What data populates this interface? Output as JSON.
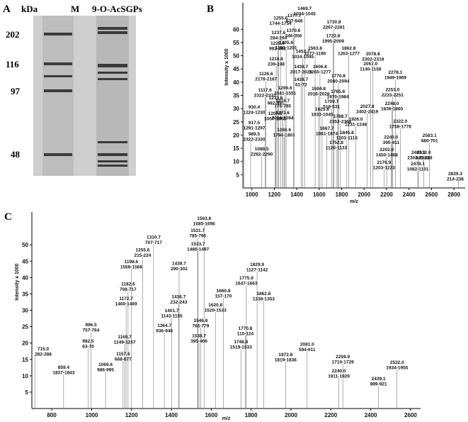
{
  "gel": {
    "panel_label": "A",
    "unit": "kDa",
    "lane_labels": [
      "M",
      "9-O-AcSGPs"
    ],
    "markers": [
      "202",
      "116",
      "97",
      "48"
    ]
  },
  "chart_data": [
    {
      "type": "stick",
      "panel_label": "B",
      "xlabel": "m/z",
      "ylabel": "Intensity x 1000",
      "xlim": [
        920,
        2900
      ],
      "ylim": [
        0,
        70
      ],
      "xticks": [
        1000,
        1200,
        1400,
        1600,
        1800,
        2000,
        2200,
        2400,
        2600,
        2800
      ],
      "yticks": [
        5,
        10,
        15,
        20,
        25,
        30,
        35,
        40,
        45,
        50,
        55,
        60
      ],
      "annotations": [
        {
          "peak": {
            "value": 1255.6,
            "label": "1255.6"
          },
          "range": "1744-1754",
          "intensity": 65
        },
        {
          "peak": {
            "value": 1237.6,
            "label": "1237.6"
          },
          "range": "284-294",
          "intensity": 59.5
        },
        {
          "peak": {
            "value": 1229.6,
            "label": "1229.6"
          },
          "range": "982-991",
          "intensity": 55.5
        },
        {
          "peak": {
            "value": 1216.6,
            "label": "1216.6"
          },
          "range": "239-248",
          "intensity": 49.6
        },
        {
          "peak": {
            "value": 1126.6,
            "label": "1126.6"
          },
          "range": "2178-2187",
          "intensity": 44
        },
        {
          "peak": {
            "value": 1117.6,
            "label": "1117.6"
          },
          "range": "2322-2331",
          "intensity": 37.8
        },
        {
          "peak": {
            "value": 930.4,
            "label": "930.4"
          },
          "range": "1224-1230",
          "intensity": 31.4
        },
        {
          "peak": {
            "value": 917.5,
            "label": "917.5"
          },
          "range": "1291-1297",
          "intensity": 25.5
        },
        {
          "peak": {
            "value": 989.5,
            "label": "989.5"
          },
          "range": "2322-2330",
          "intensity": 21.2
        },
        {
          "peak": {
            "value": 1088.5,
            "label": "1088.5"
          },
          "range": "2282-2290",
          "intensity": 15.5
        },
        {
          "peak": {
            "value": 1213.6,
            "label": "1213.6"
          },
          "range": "982-991",
          "intensity": 34.9
        },
        {
          "peak": {
            "value": 1207.6,
            "label": "1207.6"
          },
          "range": "1057-1065",
          "intensity": 29
        },
        {
          "peak": {
            "value": 1296.6,
            "label": "1296.6"
          },
          "range": "1541-1551",
          "intensity": 38.6
        },
        {
          "peak": {
            "value": 1274.7,
            "label": "1274.7"
          },
          "range": "775-785",
          "intensity": 33.8
        },
        {
          "peak": {
            "value": 1273.6,
            "label": "1273.6"
          },
          "range": "2084-2094",
          "intensity": 29.2
        },
        {
          "peak": {
            "value": 1286.6,
            "label": "1286.6"
          },
          "range": "1794-1803",
          "intensity": 22.8
        },
        {
          "peak": {
            "value": 1377.7,
            "label": "1377.7"
          },
          "range": "837-848",
          "intensity": 66
        },
        {
          "peak": {
            "value": 1469.7,
            "label": "1469.7"
          },
          "range": "1034-1045",
          "intensity": 68.6
        },
        {
          "peak": {
            "value": 1370.6,
            "label": "1370.6"
          },
          "range": "346-356",
          "intensity": 60.3
        },
        {
          "peak": {
            "value": 1305.6,
            "label": "1305.6"
          },
          "range": "1191-1201",
          "intensity": 55.8
        },
        {
          "peak": {
            "value": 1453.7,
            "label": "1453.7"
          },
          "range": "1034-1045",
          "intensity": 52.5
        },
        {
          "peak": {
            "value": 1438.7,
            "label": "1438.7"
          },
          "range": "2017-2028",
          "intensity": 46.6
        },
        {
          "peak": {
            "value": 1438.7,
            "label": "1438.7"
          },
          "range": "61-72",
          "intensity": 41.8
        },
        {
          "peak": {
            "value": 1563.8,
            "label": "1563.8"
          },
          "range": "1177-1190",
          "intensity": 53.6
        },
        {
          "peak": {
            "value": 1730.8,
            "label": "1730.8"
          },
          "range": "2267-2281",
          "intensity": 63.5
        },
        {
          "peak": {
            "value": 1723.8,
            "label": "1723.8"
          },
          "range": "1995-2009",
          "intensity": 58.4
        },
        {
          "peak": {
            "value": 1862.8,
            "label": "1862.8"
          },
          "range": "1263-1277",
          "intensity": 53.6
        },
        {
          "peak": {
            "value": 1606.8,
            "label": "1606.8"
          },
          "range": "1265-1277",
          "intensity": 46.6
        },
        {
          "peak": {
            "value": 1770.8,
            "label": "1770.8"
          },
          "range": "2080-2094",
          "intensity": 43.2
        },
        {
          "peak": {
            "value": 2057,
            "label": "2057.0"
          },
          "range": "1140-1158",
          "intensity": 47.7
        },
        {
          "peak": {
            "value": 2078.8,
            "label": "2078.8"
          },
          "range": "2302-2318",
          "intensity": 51.5
        },
        {
          "peak": {
            "value": 2278.1,
            "label": "2278.1"
          },
          "range": "1949-1969",
          "intensity": 44.5
        },
        {
          "peak": {
            "value": 1594.8,
            "label": "1594.8"
          },
          "range": "2016-2028",
          "intensity": 38.3
        },
        {
          "peak": {
            "value": 1765.8,
            "label": "1765.8"
          },
          "range": "1970-1984",
          "intensity": 37.3
        },
        {
          "peak": {
            "value": 1709.7,
            "label": "1709.7"
          },
          "range": "518-531",
          "intensity": 33.5
        },
        {
          "peak": {
            "value": 1625.8,
            "label": "1625.8"
          },
          "range": "1033-1045",
          "intensity": 30.6
        },
        {
          "peak": {
            "value": 1788.7,
            "label": "1788.7"
          },
          "range": "2353-2368",
          "intensity": 27.9
        },
        {
          "peak": {
            "value": 1667.7,
            "label": "1667.7"
          },
          "range": "1861-1874",
          "intensity": 23.3
        },
        {
          "peak": {
            "value": 1752.8,
            "label": "1752.8"
          },
          "range": "1120-1133",
          "intensity": 18
        },
        {
          "peak": {
            "value": 1845.8,
            "label": "1845.8"
          },
          "range": "1103-1118",
          "intensity": 21.7
        },
        {
          "peak": {
            "value": 2027.8,
            "label": "2027.8"
          },
          "range": "2402-2419",
          "intensity": 31.6
        },
        {
          "peak": {
            "value": 1926,
            "label": "1926.0"
          },
          "range": "1231-1248",
          "intensity": 26.8
        },
        {
          "peak": {
            "value": 2253,
            "label": "2253.0"
          },
          "range": "2233-2251",
          "intensity": 38
        },
        {
          "peak": {
            "value": 2248,
            "label": "2248.0"
          },
          "range": "1839-1860",
          "intensity": 32.7
        },
        {
          "peak": {
            "value": 2322,
            "label": "2322.0"
          },
          "range": "1758-1778",
          "intensity": 26
        },
        {
          "peak": {
            "value": 2240,
            "label": "2240.0"
          },
          "range": "390-411",
          "intensity": 20
        },
        {
          "peak": {
            "value": 2583.1,
            "label": "2583.1"
          },
          "range": "680-701",
          "intensity": 20.6
        },
        {
          "peak": {
            "value": 2202,
            "label": "2202.0"
          },
          "range": "1450-1468",
          "intensity": 15.3
        },
        {
          "peak": {
            "value": 2483.1,
            "label": "2483.1"
          },
          "range": "2302-2321",
          "intensity": 14.2
        },
        {
          "peak": {
            "value": 2532,
            "label": "2532.0"
          },
          "range": "426-448",
          "intensity": 14.2
        },
        {
          "peak": {
            "value": 2176.9,
            "label": "2176.9"
          },
          "range": "1203-1223",
          "intensity": 10.5
        },
        {
          "peak": {
            "value": 2478.1,
            "label": "2478.1"
          },
          "range": "1082-1101",
          "intensity": 9.9
        },
        {
          "peak": {
            "value": 2839.3,
            "label": "2839.3"
          },
          "range": "214-238",
          "intensity": 6.2
        }
      ]
    },
    {
      "type": "stick",
      "panel_label": "C",
      "xlabel": "m/z",
      "ylabel": "Intensity x 1000",
      "xlim": [
        700,
        2650
      ],
      "ylim": [
        0,
        60
      ],
      "xticks": [
        800,
        1000,
        1200,
        1400,
        1600,
        1800,
        2000,
        2200,
        2400,
        2600
      ],
      "yticks": [
        5,
        10,
        15,
        20,
        25,
        30,
        35,
        40,
        45,
        50
      ],
      "annotations": [
        {
          "peak": {
            "value": 1563.8,
            "label": "1563.8"
          },
          "range": "1685-1696",
          "intensity": 58.7
        },
        {
          "peak": {
            "value": 1531.7,
            "label": "1531.7"
          },
          "range": "785-796",
          "intensity": 55
        },
        {
          "peak": {
            "value": 1533.7,
            "label": "1533.7"
          },
          "range": "1486-1497",
          "intensity": 50.9
        },
        {
          "peak": {
            "value": 1310.7,
            "label": "1310.7"
          },
          "range": "707-717",
          "intensity": 53
        },
        {
          "peak": {
            "value": 1255.6,
            "label": "1255.6"
          },
          "range": "215-224",
          "intensity": 49.1
        },
        {
          "peak": {
            "value": 1198.6,
            "label": "1198.6"
          },
          "range": "1559-1568",
          "intensity": 45.5
        },
        {
          "peak": {
            "value": 1829.9,
            "label": "1829.9"
          },
          "range": "1127-1142",
          "intensity": 44.6
        },
        {
          "peak": {
            "value": 1775.9,
            "label": "1775.9"
          },
          "range": "1647-1663",
          "intensity": 40.5
        },
        {
          "peak": {
            "value": 1862.8,
            "label": "1862.8"
          },
          "range": "1338-1353",
          "intensity": 35.7
        },
        {
          "peak": {
            "value": 1660.8,
            "label": "1660.8"
          },
          "range": "157-170",
          "intensity": 36.6
        },
        {
          "peak": {
            "value": 1620.8,
            "label": "1620.8"
          },
          "range": "1520-1533",
          "intensity": 32.3
        },
        {
          "peak": {
            "value": 1546.8,
            "label": "1546.8"
          },
          "range": "765-779",
          "intensity": 27.5
        },
        {
          "peak": {
            "value": 1538.7,
            "label": "1538.7"
          },
          "range": "395-406",
          "intensity": 22.9
        },
        {
          "peak": {
            "value": 1770.8,
            "label": "1770.8"
          },
          "range": "110-124",
          "intensity": 25.1
        },
        {
          "peak": {
            "value": 1748.8,
            "label": "1748.8"
          },
          "range": "1519-1533",
          "intensity": 21
        },
        {
          "peak": {
            "value": 1438.7,
            "label": "1438.7"
          },
          "range": "290-302",
          "intensity": 45
        },
        {
          "peak": {
            "value": 1436.7,
            "label": "1436.7"
          },
          "range": "232-243",
          "intensity": 34.8
        },
        {
          "peak": {
            "value": 1401.7,
            "label": "1401.7"
          },
          "range": "1143-1155",
          "intensity": 30.5
        },
        {
          "peak": {
            "value": 1364.7,
            "label": "1364.7"
          },
          "range": "936-946",
          "intensity": 26
        },
        {
          "peak": {
            "value": 1182.6,
            "label": "1182.6"
          },
          "range": "708-717",
          "intensity": 38.7
        },
        {
          "peak": {
            "value": 1172.7,
            "label": "1172.7"
          },
          "range": "1460-1469",
          "intensity": 34.2
        },
        {
          "peak": {
            "value": 1165.7,
            "label": "1165.7"
          },
          "range": "1249-1257",
          "intensity": 22.5
        },
        {
          "peak": {
            "value": 1157.6,
            "label": "1157.6"
          },
          "range": "668-677",
          "intensity": 17.3
        },
        {
          "peak": {
            "value": 996.5,
            "label": "996.5"
          },
          "range": "757-764",
          "intensity": 26.2
        },
        {
          "peak": {
            "value": 982.5,
            "label": "982.5"
          },
          "range": "63-70",
          "intensity": 21.2
        },
        {
          "peak": {
            "value": 1069.6,
            "label": "1069.6"
          },
          "range": "986-995",
          "intensity": 14.1
        },
        {
          "peak": {
            "value": 715,
            "label": "715.0"
          },
          "range": "282-288",
          "intensity": 18.8
        },
        {
          "peak": {
            "value": 859.4,
            "label": "859.4"
          },
          "range": "1837-1843",
          "intensity": 13.2
        },
        {
          "peak": {
            "value": 2081,
            "label": "2081.0"
          },
          "range": "594-611",
          "intensity": 20.3
        },
        {
          "peak": {
            "value": 1972.8,
            "label": "1972.8"
          },
          "range": "1819-1836",
          "intensity": 17.1
        },
        {
          "peak": {
            "value": 2259.9,
            "label": "2259.9"
          },
          "range": "1710-1729",
          "intensity": 16.5
        },
        {
          "peak": {
            "value": 2240,
            "label": "2240.0"
          },
          "range": "1911-1929",
          "intensity": 12.1
        },
        {
          "peak": {
            "value": 2532,
            "label": "2532.0"
          },
          "range": "1934-1955",
          "intensity": 14.7
        },
        {
          "peak": {
            "value": 2439.1,
            "label": "2439.1"
          },
          "range": "899-921",
          "intensity": 9.7
        }
      ]
    }
  ]
}
